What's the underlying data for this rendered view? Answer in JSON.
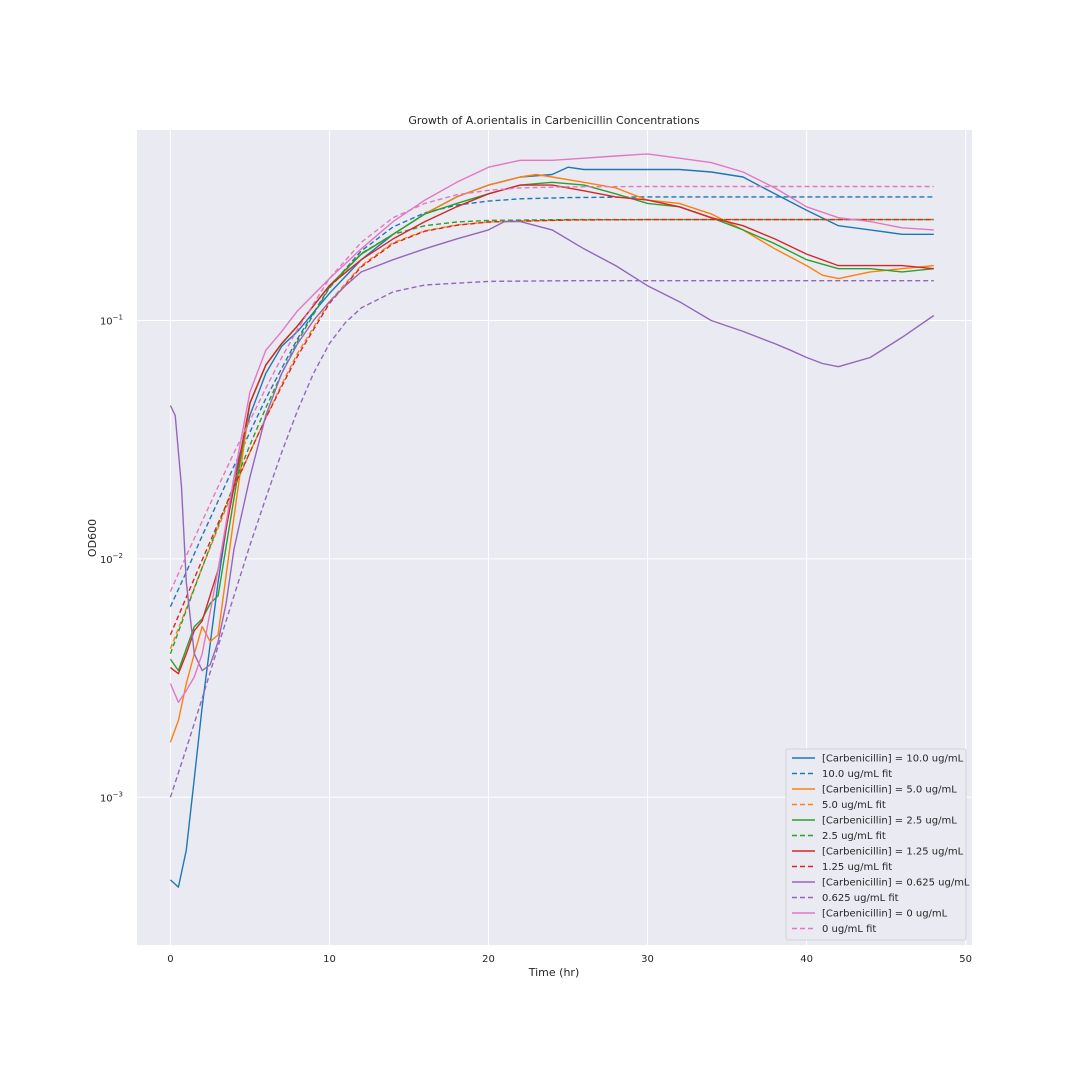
{
  "chart_data": {
    "type": "line",
    "title": "Growth of A.orientalis in Carbenicillin Concentrations",
    "xlabel": "Time (hr)",
    "ylabel": "OD600",
    "xlim": [
      -2.1,
      50.4
    ],
    "ylim": [
      0.00024,
      0.63
    ],
    "yscale": "log",
    "x_ticks": [
      0,
      10,
      20,
      30,
      40,
      50
    ],
    "y_ticks": [
      0.001,
      0.01,
      0.1
    ],
    "y_tick_labels": [
      {
        "base": "10",
        "exp": "−3"
      },
      {
        "base": "10",
        "exp": "−2"
      },
      {
        "base": "10",
        "exp": "−1"
      }
    ],
    "grid": true,
    "legend_position": "lower right",
    "series": [
      {
        "name": "[Carbenicillin] = 10.0 ug/mL",
        "color": "#1f77b4",
        "style": "solid",
        "x": [
          0,
          0.5,
          1,
          1.5,
          2,
          3,
          4,
          5,
          6,
          7,
          8,
          10,
          12,
          14,
          16,
          18,
          20,
          22,
          24,
          25,
          26,
          28,
          30,
          32,
          34,
          36,
          38,
          40,
          42,
          44,
          46,
          48
        ],
        "y": [
          0.00045,
          0.00042,
          0.0006,
          0.0012,
          0.0024,
          0.008,
          0.022,
          0.04,
          0.06,
          0.078,
          0.09,
          0.13,
          0.18,
          0.23,
          0.28,
          0.33,
          0.37,
          0.4,
          0.41,
          0.44,
          0.43,
          0.43,
          0.43,
          0.43,
          0.42,
          0.4,
          0.34,
          0.29,
          0.25,
          0.24,
          0.23,
          0.23
        ]
      },
      {
        "name": "10.0 ug/mL fit",
        "color": "#1f77b4",
        "style": "dashed",
        "x": [
          0,
          1,
          2,
          3,
          4,
          5,
          6,
          7,
          8,
          10,
          12,
          14,
          16,
          18,
          20,
          22,
          25,
          30,
          40,
          48
        ],
        "y": [
          0.0063,
          0.0088,
          0.0125,
          0.0175,
          0.0245,
          0.034,
          0.047,
          0.063,
          0.084,
          0.138,
          0.196,
          0.247,
          0.283,
          0.305,
          0.317,
          0.324,
          0.328,
          0.33,
          0.33,
          0.33
        ]
      },
      {
        "name": "[Carbenicillin] = 5.0 ug/mL",
        "color": "#ff7f0e",
        "style": "solid",
        "x": [
          0,
          0.5,
          1,
          1.5,
          2,
          2.5,
          3,
          4,
          5,
          6,
          7,
          8,
          10,
          12,
          14,
          16,
          18,
          20,
          22,
          23,
          24,
          26,
          28,
          30,
          32,
          34,
          36,
          38,
          40,
          41,
          42,
          44,
          46,
          48
        ],
        "y": [
          0.0017,
          0.0021,
          0.003,
          0.004,
          0.0052,
          0.0045,
          0.0048,
          0.015,
          0.045,
          0.065,
          0.08,
          0.095,
          0.14,
          0.19,
          0.23,
          0.28,
          0.33,
          0.37,
          0.4,
          0.41,
          0.4,
          0.38,
          0.36,
          0.32,
          0.31,
          0.28,
          0.24,
          0.2,
          0.17,
          0.155,
          0.15,
          0.16,
          0.165,
          0.17
        ]
      },
      {
        "name": "5.0 ug/mL fit",
        "color": "#ff7f0e",
        "style": "dashed",
        "x": [
          0,
          1,
          2,
          3,
          4,
          5,
          6,
          7,
          8,
          10,
          12,
          14,
          16,
          18,
          20,
          25,
          30,
          40,
          48
        ],
        "y": [
          0.0042,
          0.0062,
          0.0092,
          0.0135,
          0.0197,
          0.028,
          0.039,
          0.054,
          0.073,
          0.12,
          0.17,
          0.212,
          0.238,
          0.252,
          0.259,
          0.264,
          0.265,
          0.265,
          0.265
        ]
      },
      {
        "name": "[Carbenicillin] = 2.5 ug/mL",
        "color": "#2ca02c",
        "style": "solid",
        "x": [
          0,
          0.5,
          1,
          1.5,
          2,
          2.5,
          3,
          4,
          5,
          6,
          7,
          8,
          10,
          12,
          14,
          16,
          18,
          20,
          22,
          24,
          26,
          28,
          30,
          32,
          34,
          36,
          38,
          40,
          42,
          44,
          46,
          48
        ],
        "y": [
          0.0038,
          0.0034,
          0.0042,
          0.0052,
          0.0056,
          0.0065,
          0.007,
          0.018,
          0.045,
          0.065,
          0.08,
          0.095,
          0.14,
          0.19,
          0.23,
          0.28,
          0.31,
          0.34,
          0.37,
          0.38,
          0.37,
          0.34,
          0.31,
          0.3,
          0.27,
          0.24,
          0.21,
          0.18,
          0.165,
          0.165,
          0.16,
          0.165
        ]
      },
      {
        "name": "2.5 ug/mL fit",
        "color": "#2ca02c",
        "style": "dashed",
        "x": [
          0,
          1,
          2,
          3,
          4,
          5,
          6,
          7,
          8,
          10,
          12,
          14,
          16,
          18,
          20,
          25,
          30,
          40,
          48
        ],
        "y": [
          0.004,
          0.0061,
          0.0092,
          0.0138,
          0.0205,
          0.03,
          0.043,
          0.06,
          0.082,
          0.137,
          0.191,
          0.23,
          0.25,
          0.259,
          0.263,
          0.265,
          0.265,
          0.265,
          0.265
        ]
      },
      {
        "name": "[Carbenicillin] = 1.25 ug/mL",
        "color": "#d62728",
        "style": "solid",
        "x": [
          0,
          0.5,
          1,
          1.5,
          2,
          3,
          4,
          5,
          6,
          7,
          8,
          10,
          12,
          14,
          16,
          18,
          20,
          22,
          24,
          26,
          28,
          30,
          32,
          34,
          36,
          38,
          40,
          42,
          44,
          46,
          48
        ],
        "y": [
          0.0035,
          0.0033,
          0.004,
          0.005,
          0.0055,
          0.009,
          0.02,
          0.045,
          0.065,
          0.08,
          0.095,
          0.14,
          0.18,
          0.22,
          0.26,
          0.3,
          0.34,
          0.37,
          0.37,
          0.35,
          0.33,
          0.32,
          0.3,
          0.27,
          0.25,
          0.22,
          0.19,
          0.17,
          0.17,
          0.17,
          0.165
        ]
      },
      {
        "name": "1.25 ug/mL fit",
        "color": "#d62728",
        "style": "dashed",
        "x": [
          0,
          1,
          2,
          3,
          4,
          5,
          6,
          7,
          8,
          10,
          12,
          14,
          16,
          18,
          20,
          25,
          30,
          40,
          48
        ],
        "y": [
          0.0048,
          0.0069,
          0.0099,
          0.0141,
          0.02,
          0.028,
          0.039,
          0.053,
          0.071,
          0.118,
          0.168,
          0.21,
          0.237,
          0.251,
          0.259,
          0.264,
          0.265,
          0.265,
          0.265
        ]
      },
      {
        "name": "[Carbenicillin] = 0.625 ug/mL",
        "color": "#9467bd",
        "style": "solid",
        "x": [
          0,
          0.3,
          0.7,
          1,
          1.5,
          2,
          2.5,
          3,
          3.5,
          4,
          5,
          6,
          7,
          8,
          9,
          10,
          11,
          12,
          14,
          16,
          18,
          20,
          21,
          22,
          24,
          26,
          28,
          30,
          32,
          34,
          36,
          38,
          39,
          40,
          41,
          42,
          44,
          46,
          48
        ],
        "y": [
          0.044,
          0.04,
          0.02,
          0.008,
          0.004,
          0.0034,
          0.0036,
          0.0045,
          0.0065,
          0.011,
          0.022,
          0.04,
          0.06,
          0.08,
          0.1,
          0.12,
          0.14,
          0.16,
          0.18,
          0.2,
          0.22,
          0.24,
          0.26,
          0.26,
          0.24,
          0.2,
          0.17,
          0.14,
          0.12,
          0.1,
          0.09,
          0.08,
          0.075,
          0.07,
          0.066,
          0.064,
          0.07,
          0.085,
          0.105
        ]
      },
      {
        "name": "0.625 ug/mL fit",
        "color": "#9467bd",
        "style": "dashed",
        "x": [
          0,
          1,
          2,
          3,
          4,
          5,
          6,
          7,
          8,
          9,
          10,
          11,
          12,
          14,
          16,
          20,
          25,
          30,
          40,
          48
        ],
        "y": [
          0.001,
          0.0016,
          0.0026,
          0.0043,
          0.007,
          0.0114,
          0.018,
          0.028,
          0.042,
          0.06,
          0.08,
          0.098,
          0.113,
          0.132,
          0.141,
          0.146,
          0.147,
          0.147,
          0.147,
          0.147
        ]
      },
      {
        "name": "[Carbenicillin] = 0 ug/mL",
        "color": "#e377c2",
        "style": "solid",
        "x": [
          0,
          0.5,
          1,
          1.5,
          2,
          2.5,
          3,
          4,
          5,
          6,
          7,
          8,
          10,
          12,
          14,
          16,
          18,
          20,
          22,
          24,
          26,
          28,
          30,
          32,
          34,
          36,
          38,
          40,
          42,
          44,
          46,
          48
        ],
        "y": [
          0.003,
          0.0025,
          0.0028,
          0.0032,
          0.004,
          0.006,
          0.009,
          0.022,
          0.05,
          0.075,
          0.09,
          0.11,
          0.15,
          0.2,
          0.26,
          0.32,
          0.38,
          0.44,
          0.47,
          0.47,
          0.48,
          0.49,
          0.5,
          0.48,
          0.46,
          0.42,
          0.36,
          0.3,
          0.27,
          0.26,
          0.245,
          0.24
        ]
      },
      {
        "name": "0 ug/mL fit",
        "color": "#e377c2",
        "style": "dashed",
        "x": [
          0,
          1,
          2,
          3,
          4,
          5,
          6,
          7,
          8,
          10,
          12,
          14,
          16,
          18,
          20,
          22,
          25,
          30,
          40,
          48
        ],
        "y": [
          0.0073,
          0.0103,
          0.0144,
          0.0201,
          0.0279,
          0.038,
          0.052,
          0.07,
          0.092,
          0.15,
          0.213,
          0.27,
          0.31,
          0.337,
          0.352,
          0.36,
          0.364,
          0.365,
          0.365,
          0.365
        ]
      }
    ]
  }
}
